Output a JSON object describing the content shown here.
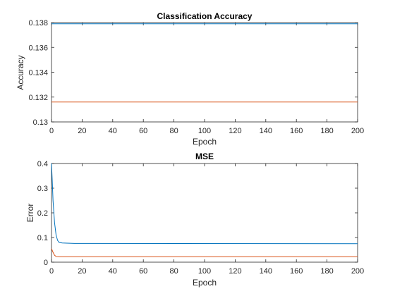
{
  "colors": {
    "background": "#ffffff",
    "axes": "#262626",
    "series_blue": "#0072bd",
    "series_orange": "#d95319"
  },
  "chart_data": [
    {
      "type": "line",
      "title": "Classification Accuracy",
      "xlabel": "Epoch",
      "ylabel": "Accuracy",
      "xlim": [
        0,
        200
      ],
      "ylim": [
        0.13,
        0.138
      ],
      "xticks": [
        "0",
        "20",
        "40",
        "60",
        "80",
        "100",
        "120",
        "140",
        "160",
        "180",
        "200"
      ],
      "yticks": [
        "0.13",
        "0.132",
        "0.134",
        "0.136",
        "0.138"
      ],
      "grid": false,
      "legend": "none",
      "series": [
        {
          "color": "#0072bd",
          "x": [
            0,
            200
          ],
          "y": [
            0.1379,
            0.1379
          ]
        },
        {
          "color": "#d95319",
          "x": [
            0,
            200
          ],
          "y": [
            0.1316,
            0.1316
          ]
        }
      ]
    },
    {
      "type": "line",
      "title": "MSE",
      "xlabel": "Epoch",
      "ylabel": "Error",
      "xlim": [
        0,
        200
      ],
      "ylim": [
        0,
        0.4
      ],
      "xticks": [
        "0",
        "20",
        "40",
        "60",
        "80",
        "100",
        "120",
        "140",
        "160",
        "180",
        "200"
      ],
      "yticks": [
        "0",
        "0.1",
        "0.2",
        "0.3",
        "0.4"
      ],
      "grid": false,
      "legend": "none",
      "series": [
        {
          "color": "#0072bd",
          "x": [
            0,
            0.5,
            1,
            2,
            3,
            4,
            5,
            7,
            10,
            15,
            200
          ],
          "y": [
            0.4,
            0.33,
            0.25,
            0.16,
            0.11,
            0.088,
            0.08,
            0.078,
            0.077,
            0.076,
            0.075
          ]
        },
        {
          "color": "#d95319",
          "x": [
            0,
            1,
            2,
            3,
            5,
            200
          ],
          "y": [
            0.055,
            0.04,
            0.028,
            0.023,
            0.022,
            0.022
          ]
        }
      ]
    }
  ]
}
